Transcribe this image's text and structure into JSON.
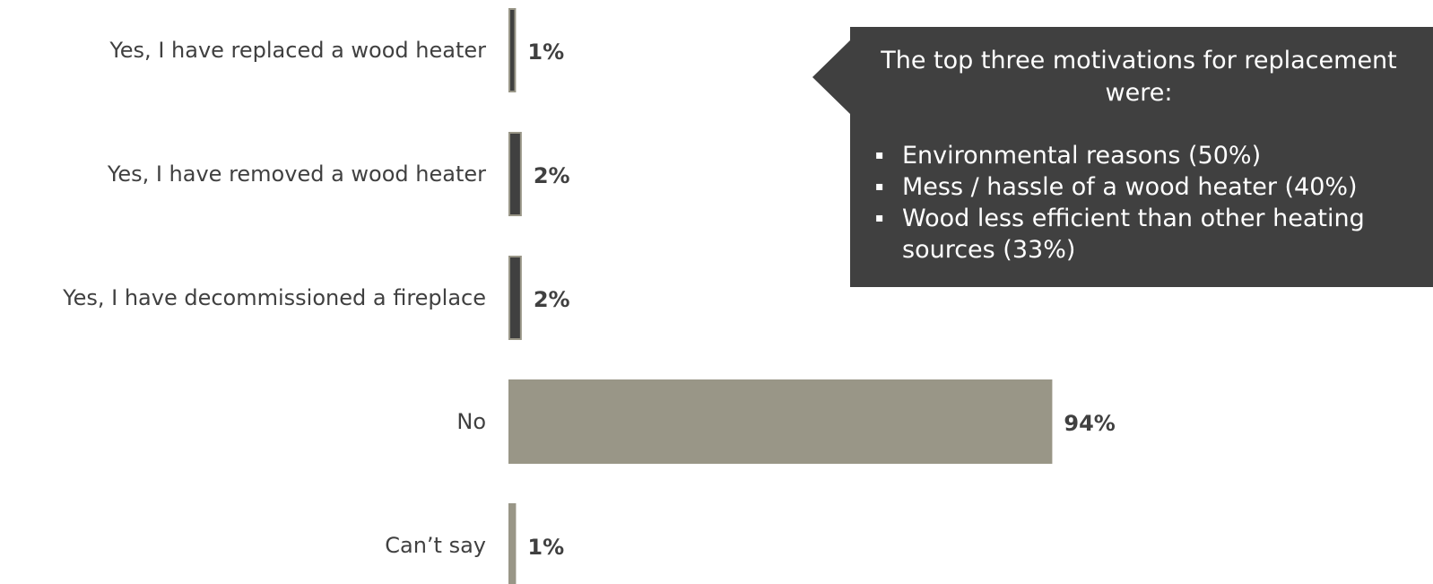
{
  "chart_data": {
    "type": "bar",
    "orientation": "horizontal",
    "categories": [
      "Yes, I have replaced a wood heater",
      "Yes, I have removed a wood heater",
      "Yes, I have decommissioned a fireplace",
      "No",
      "Can’t say"
    ],
    "values": [
      1,
      2,
      2,
      94,
      1
    ],
    "value_labels": [
      "1%",
      "2%",
      "2%",
      "94%",
      "1%"
    ],
    "bar_colors": [
      "#404040",
      "#404040",
      "#404040",
      "#999687",
      "#999687"
    ],
    "bar_outline": "#999687",
    "xlim": [
      0,
      100
    ],
    "grid": false,
    "legend": "none"
  },
  "callout": {
    "title": "The top three motivations for replacement were:",
    "items": [
      "Environmental reasons (50%)",
      "Mess / hassle of a wood heater (40%)",
      "Wood less efficient than other heating sources (33%)"
    ],
    "bullet": "▪",
    "background": "#404040",
    "text_color": "#ffffff"
  }
}
